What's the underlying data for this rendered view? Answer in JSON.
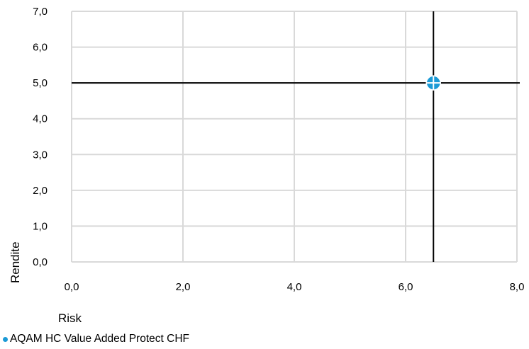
{
  "chart_data": {
    "type": "scatter",
    "xlabel": "Risk",
    "ylabel": "Rendite",
    "xlim": [
      0,
      8
    ],
    "ylim": [
      0,
      7
    ],
    "x_ticks": [
      "0,0",
      "2,0",
      "4,0",
      "6,0",
      "8,0"
    ],
    "y_ticks": [
      "0,0",
      "1,0",
      "2,0",
      "3,0",
      "4,0",
      "5,0",
      "6,0",
      "7,0"
    ],
    "grid": true,
    "legend_position": "bottom-left",
    "crosshair": {
      "x": 6.5,
      "y": 5.0
    },
    "series": [
      {
        "name": "AQAM HC Value Added Protect CHF",
        "color": "#1b9ad6",
        "points": [
          {
            "x": 6.5,
            "y": 5.0
          }
        ]
      }
    ]
  },
  "colors": {
    "grid": "#d9d9d9",
    "crosshair": "#000000",
    "marker": "#1b9ad6"
  }
}
